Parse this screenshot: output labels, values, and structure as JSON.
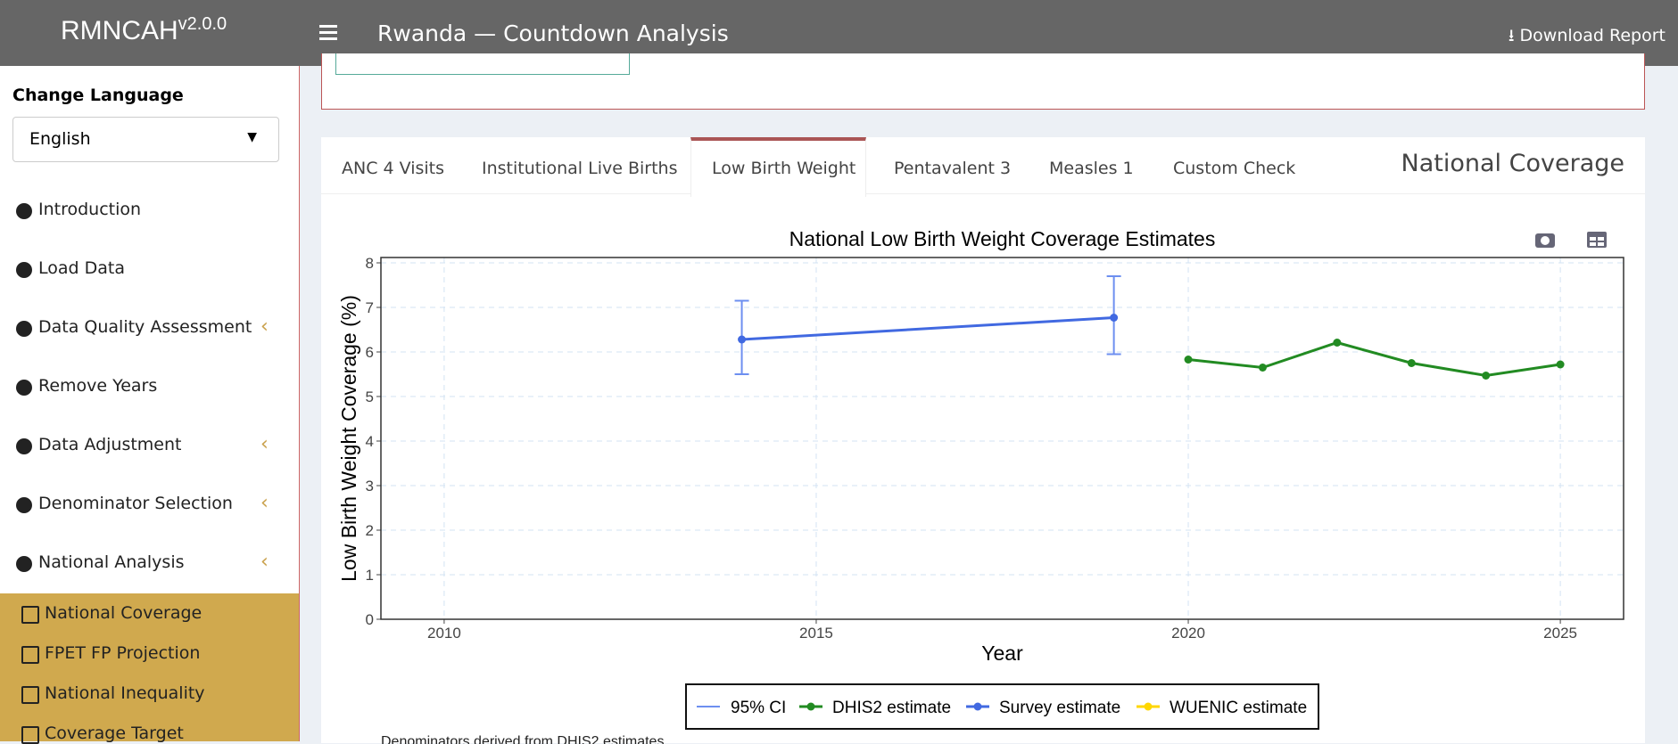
{
  "header": {
    "brand": "RMNCAH",
    "version": "v2.0.0",
    "title": "Rwanda — Countdown Analysis",
    "download": "Download Report"
  },
  "sidebar": {
    "language_label": "Change Language",
    "language": "English",
    "menu": [
      {
        "label": "Introduction",
        "submenu": false
      },
      {
        "label": "Load Data",
        "submenu": false
      },
      {
        "label": "Data Quality Assessment",
        "submenu": true
      },
      {
        "label": "Remove Years",
        "submenu": false
      },
      {
        "label": "Data Adjustment",
        "submenu": true
      },
      {
        "label": "Denominator Selection",
        "submenu": true
      },
      {
        "label": "National Analysis",
        "submenu": true
      }
    ],
    "submenu": [
      "National Coverage",
      "FPET FP Projection",
      "National Inequality",
      "Coverage Target"
    ]
  },
  "tabs": {
    "items": [
      "ANC 4 Visits",
      "Institutional Live Births",
      "Low Birth Weight",
      "Pentavalent 3",
      "Measles 1",
      "Custom Check"
    ],
    "active": 2,
    "panel_title": "National Coverage"
  },
  "chart_data": {
    "type": "line",
    "title": "National Low Birth Weight Coverage Estimates",
    "x_label": "Year",
    "y_label": "Low Birth Weight Coverage (%)",
    "xlim": [
      2009.15,
      2025.85
    ],
    "xticks": [
      2010,
      2015,
      2020,
      2025
    ],
    "ylim": [
      0,
      8.12
    ],
    "yticks": [
      0,
      1,
      2,
      3,
      4,
      5,
      6,
      7,
      8
    ],
    "grid": true,
    "legend_position": "bottom",
    "ci_label": "95% CI",
    "ci_color": "#6d8ff0",
    "series": [
      {
        "name": "DHIS2 estimate",
        "color": "#228b22",
        "x": [
          2020,
          2021,
          2022,
          2023,
          2024,
          2025
        ],
        "values": [
          5.83,
          5.65,
          6.21,
          5.75,
          5.47,
          5.72
        ]
      },
      {
        "name": "Survey estimate",
        "color": "#4169e1",
        "x": [
          2014,
          2019
        ],
        "values": [
          6.28,
          6.77
        ],
        "ci_low": [
          5.5,
          5.95
        ],
        "ci_high": [
          7.15,
          7.7
        ]
      },
      {
        "name": "WUENIC estimate",
        "color": "#ffd700",
        "x": [],
        "values": []
      }
    ]
  },
  "footnote": "Denominators derived from DHIS2 estimates"
}
